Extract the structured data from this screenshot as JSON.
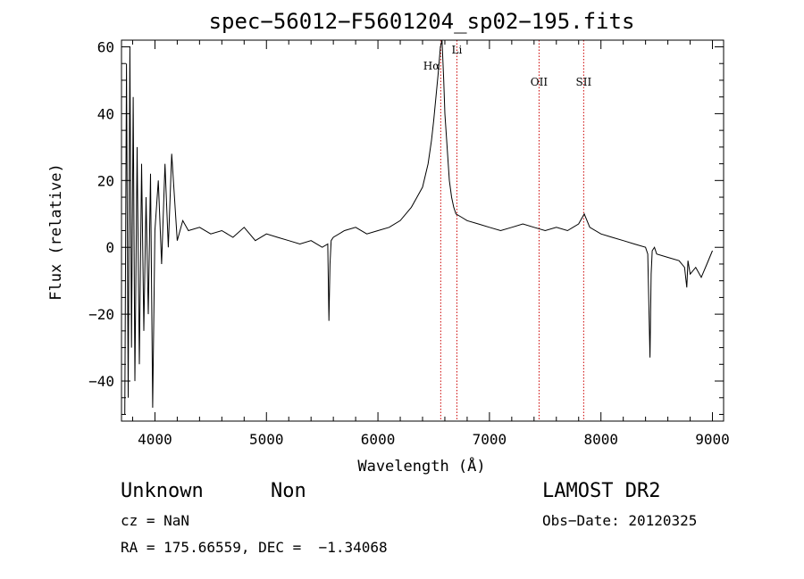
{
  "chart_data": {
    "type": "line",
    "title": "spec−56012−F5601204_sp02−195.fits",
    "xlabel": "Wavelength (Å)",
    "ylabel": "Flux (relative)",
    "xlim": [
      3700,
      9100
    ],
    "ylim": [
      -52,
      62
    ],
    "xticks": [
      4000,
      5000,
      6000,
      7000,
      8000,
      9000
    ],
    "xtick_labels": [
      "4000",
      "5000",
      "6000",
      "7000",
      "8000",
      "9000"
    ],
    "yticks": [
      -40,
      -20,
      0,
      20,
      40,
      60
    ],
    "ytick_labels": [
      "−40",
      "−20",
      "0",
      "20",
      "40",
      "60"
    ],
    "grid": false,
    "series": [
      {
        "color": "#000000",
        "x": [
          3730,
          3745,
          3760,
          3775,
          3790,
          3805,
          3820,
          3840,
          3860,
          3880,
          3900,
          3920,
          3940,
          3960,
          3980,
          4000,
          4030,
          4060,
          4090,
          4120,
          4150,
          4200,
          4250,
          4300,
          4400,
          4500,
          4600,
          4700,
          4800,
          4900,
          5000,
          5100,
          5200,
          5300,
          5400,
          5500,
          5550,
          5560,
          5570,
          5580,
          5600,
          5700,
          5800,
          5900,
          6000,
          6100,
          6200,
          6300,
          6350,
          6400,
          6450,
          6480,
          6500,
          6520,
          6540,
          6560,
          6575,
          6590,
          6600,
          6620,
          6640,
          6660,
          6680,
          6700,
          6750,
          6800,
          6900,
          7000,
          7100,
          7200,
          7300,
          7400,
          7500,
          7600,
          7700,
          7800,
          7850,
          7900,
          8000,
          8100,
          8200,
          8300,
          8400,
          8420,
          8440,
          8450,
          8460,
          8480,
          8500,
          8600,
          8700,
          8750,
          8770,
          8780,
          8800,
          8850,
          8900,
          8950,
          9000
        ],
        "y": [
          -50,
          55,
          -45,
          60,
          -30,
          45,
          -40,
          30,
          -35,
          25,
          -25,
          15,
          -20,
          22,
          -48,
          5,
          20,
          -5,
          25,
          0,
          28,
          2,
          8,
          5,
          6,
          4,
          5,
          3,
          6,
          2,
          4,
          3,
          2,
          1,
          2,
          0,
          1,
          -22,
          -5,
          2,
          3,
          5,
          6,
          4,
          5,
          6,
          8,
          12,
          15,
          18,
          25,
          32,
          38,
          45,
          52,
          60,
          62,
          50,
          40,
          30,
          20,
          15,
          12,
          10,
          9,
          8,
          7,
          6,
          5,
          6,
          7,
          6,
          5,
          6,
          5,
          7,
          10,
          6,
          4,
          3,
          2,
          1,
          0,
          -2,
          -33,
          -8,
          -1,
          0,
          -2,
          -3,
          -4,
          -6,
          -12,
          -4,
          -8,
          -6,
          -9,
          -5,
          -1
        ]
      }
    ],
    "annotations": [
      {
        "x": 6563,
        "label": "Hα"
      },
      {
        "x": 6708,
        "label": "Li"
      },
      {
        "x": 7445,
        "label": "OII"
      },
      {
        "x": 7845,
        "label": "SII"
      }
    ],
    "annotation_color": "#cc0000"
  },
  "footer": {
    "object_class": "Unknown",
    "object_subclass": "Non",
    "redshift": "cz = NaN",
    "coords": "RA = 175.66559, DEC =  −1.34068",
    "survey": "LAMOST DR2",
    "obs_date": "Obs−Date: 20120325"
  }
}
